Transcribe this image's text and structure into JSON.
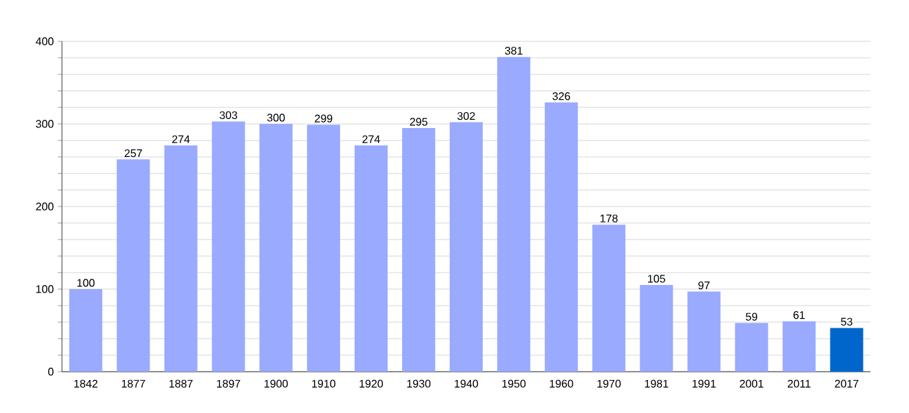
{
  "chart_data": {
    "type": "bar",
    "categories": [
      "1842",
      "1877",
      "1887",
      "1897",
      "1900",
      "1910",
      "1920",
      "1930",
      "1940",
      "1950",
      "1960",
      "1970",
      "1981",
      "1991",
      "2001",
      "2011",
      "2017"
    ],
    "values": [
      100,
      257,
      274,
      303,
      300,
      299,
      274,
      295,
      302,
      381,
      326,
      178,
      105,
      97,
      59,
      61,
      53
    ],
    "colors": [
      "#99aaff",
      "#99aaff",
      "#99aaff",
      "#99aaff",
      "#99aaff",
      "#99aaff",
      "#99aaff",
      "#99aaff",
      "#99aaff",
      "#99aaff",
      "#99aaff",
      "#99aaff",
      "#99aaff",
      "#99aaff",
      "#99aaff",
      "#99aaff",
      "#0066cc"
    ],
    "ylim": [
      0,
      400
    ],
    "yticks": [
      0,
      {
        "value": 20,
        "label": null
      },
      {
        "value": 40,
        "label": null
      },
      {
        "value": 60,
        "label": null
      },
      {
        "value": 80,
        "label": null
      },
      100,
      {
        "value": 120,
        "label": null
      },
      {
        "value": 140,
        "label": null
      },
      {
        "value": 160,
        "label": null
      },
      {
        "value": 180,
        "label": null
      },
      200,
      {
        "value": 220,
        "label": null
      },
      {
        "value": 240,
        "label": null
      },
      {
        "value": 260,
        "label": null
      },
      {
        "value": 280,
        "label": null
      },
      300,
      {
        "value": 320,
        "label": null
      },
      {
        "value": 340,
        "label": null
      },
      {
        "value": 360,
        "label": null
      },
      {
        "value": 380,
        "label": null
      },
      400
    ],
    "grid": "y",
    "data_labels": true
  }
}
